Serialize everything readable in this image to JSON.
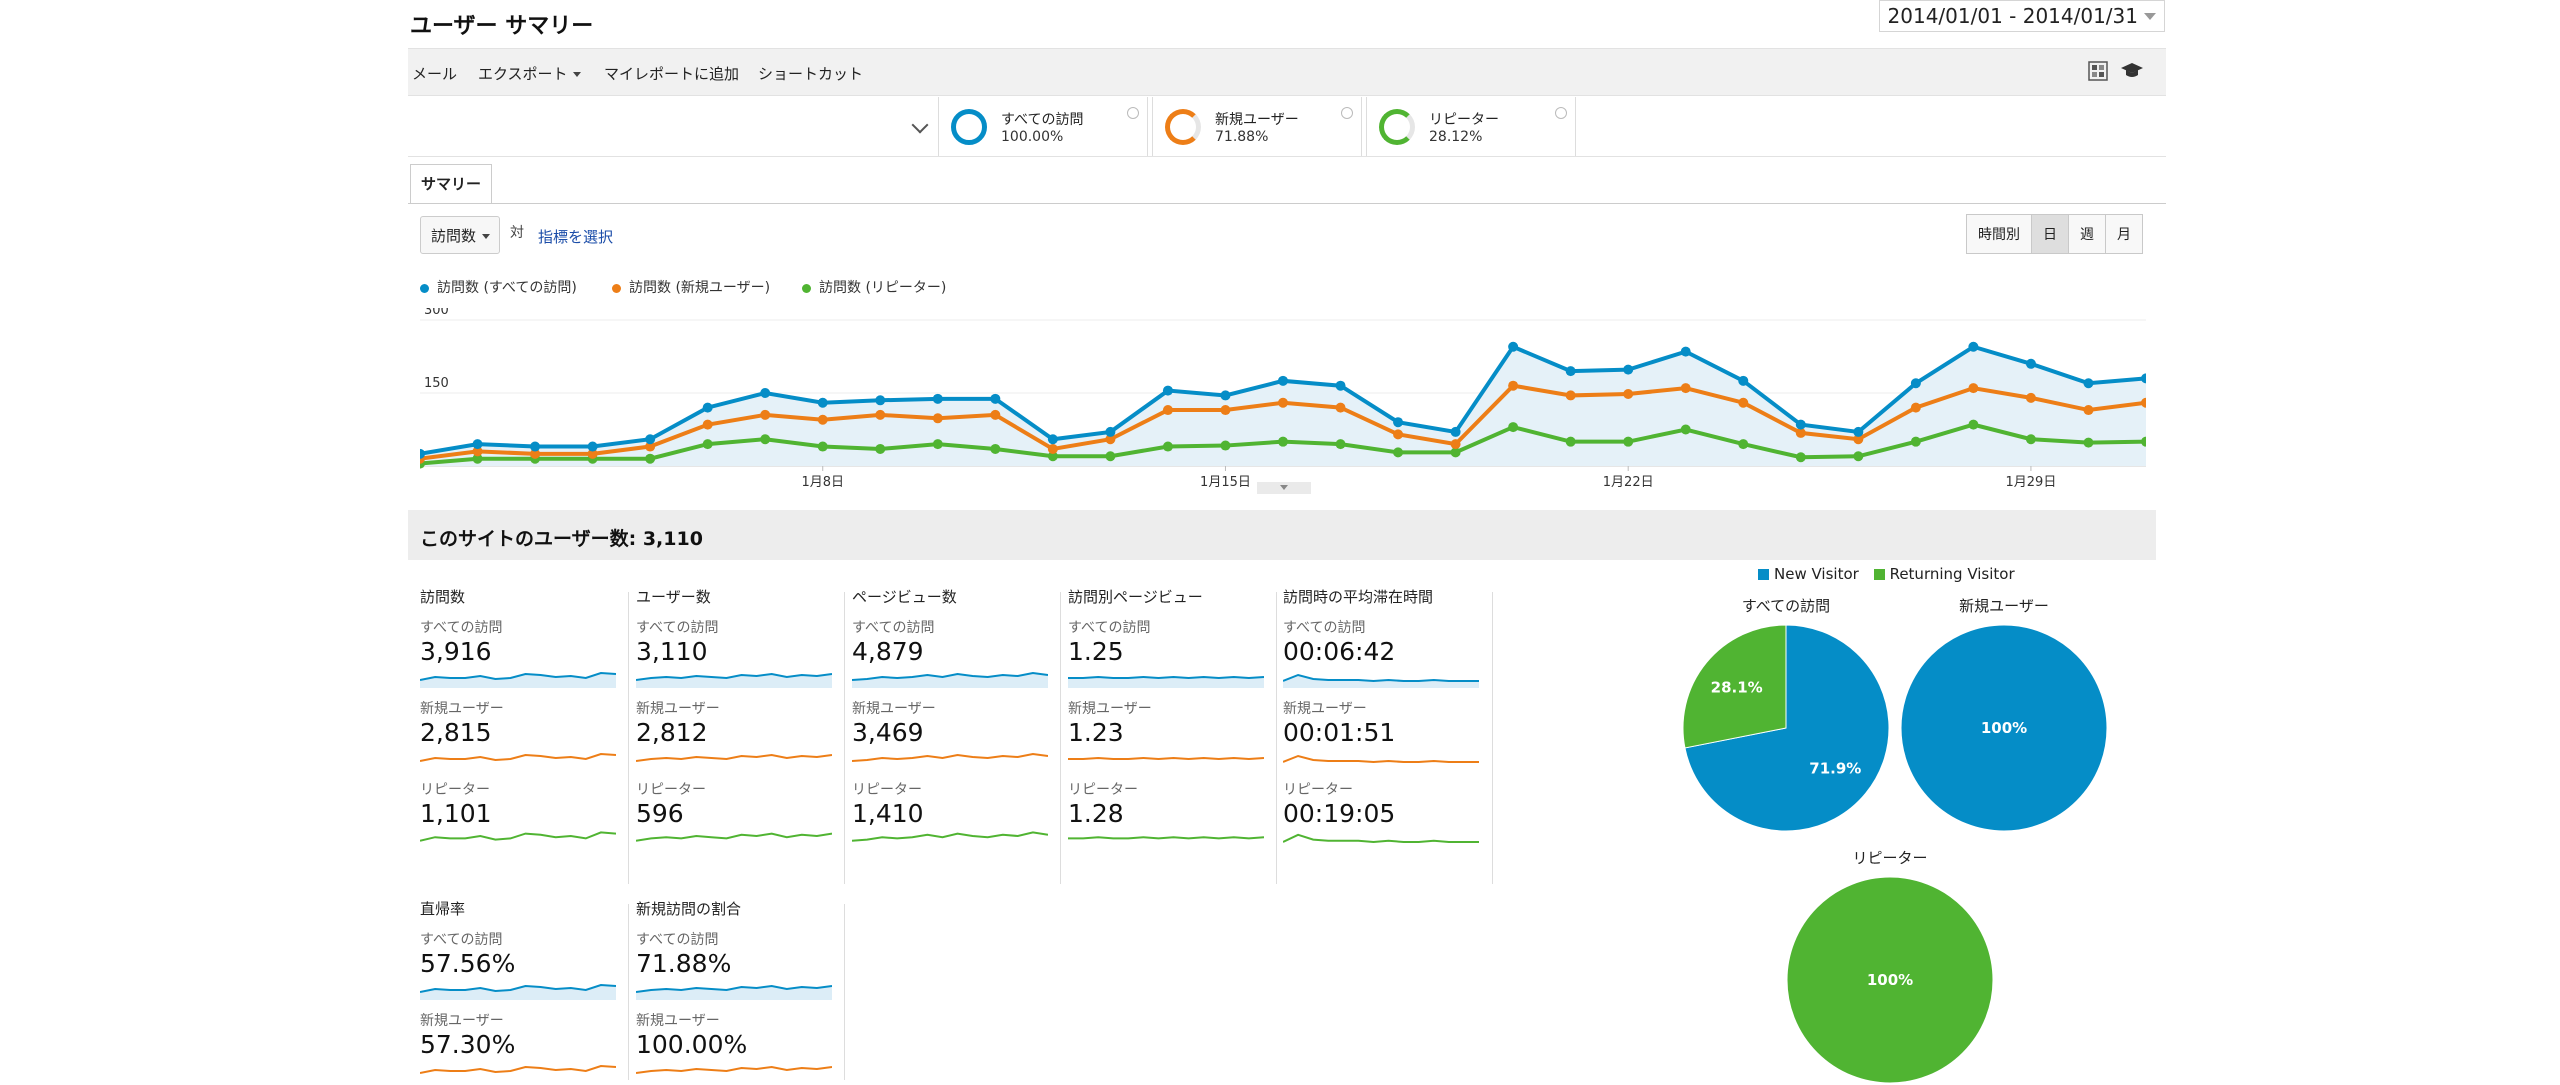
{
  "header": {
    "title": "ユーザー サマリー",
    "date_range": "2014/01/01 - 2014/01/31"
  },
  "toolbar": {
    "mail": "メール",
    "export": "エクスポート",
    "add_to_dashboard": "マイレポートに追加",
    "shortcut": "ショートカット"
  },
  "segments": [
    {
      "name": "すべての訪問",
      "pct": "100.00%",
      "color": "#058dc7"
    },
    {
      "name": "新規ユーザー",
      "pct": "71.88%",
      "color": "#ed7e17"
    },
    {
      "name": "リピーター",
      "pct": "28.12%",
      "color": "#50b432"
    }
  ],
  "tabs": {
    "summary": "サマリー"
  },
  "controls": {
    "metric": "訪問数",
    "vs": "対",
    "pick_metric": "指標を選択",
    "granularity": [
      "時間別",
      "日",
      "週",
      "月"
    ],
    "active_granularity": "日"
  },
  "chart_data": {
    "type": "line",
    "x": [
      "1月1日",
      "1月2日",
      "1月3日",
      "1月4日",
      "1月5日",
      "1月6日",
      "1月7日",
      "1月8日",
      "1月9日",
      "1月10日",
      "1月11日",
      "1月12日",
      "1月13日",
      "1月14日",
      "1月15日",
      "1月16日",
      "1月17日",
      "1月18日",
      "1月19日",
      "1月20日",
      "1月21日",
      "1月22日",
      "1月23日",
      "1月24日",
      "1月25日",
      "1月26日",
      "1月27日",
      "1月28日",
      "1月29日",
      "1月30日",
      "1月31日"
    ],
    "x_tick_labels": [
      "1月8日",
      "1月15日",
      "1月22日",
      "1月29日"
    ],
    "y_tick_labels": [
      "300",
      "150"
    ],
    "ylim": [
      0,
      300
    ],
    "series": [
      {
        "name": "訪問数 (すべての訪問)",
        "color": "#058dc7",
        "values": [
          25,
          45,
          40,
          40,
          55,
          120,
          150,
          130,
          135,
          138,
          138,
          55,
          70,
          155,
          145,
          175,
          165,
          90,
          70,
          245,
          195,
          198,
          235,
          175,
          85,
          70,
          170,
          245,
          210,
          170,
          180
        ]
      },
      {
        "name": "訪問数 (新規ユーザー)",
        "color": "#ed7e17",
        "values": [
          15,
          30,
          25,
          25,
          40,
          85,
          105,
          95,
          105,
          98,
          105,
          35,
          55,
          115,
          115,
          130,
          120,
          65,
          45,
          165,
          145,
          148,
          160,
          130,
          68,
          55,
          120,
          160,
          140,
          115,
          130
        ]
      },
      {
        "name": "訪問数 (リピーター)",
        "color": "#50b432",
        "values": [
          5,
          15,
          15,
          15,
          15,
          45,
          55,
          40,
          35,
          45,
          35,
          20,
          20,
          40,
          42,
          50,
          45,
          28,
          28,
          80,
          50,
          50,
          75,
          45,
          18,
          20,
          50,
          85,
          55,
          48,
          50
        ]
      }
    ]
  },
  "users_section": {
    "label": "このサイトのユーザー数: 3,110"
  },
  "metrics": [
    {
      "title": "訪問数",
      "rows": [
        {
          "segment": "すべての訪問",
          "value": "3,916"
        },
        {
          "segment": "新規ユーザー",
          "value": "2,815"
        },
        {
          "segment": "リピーター",
          "value": "1,101"
        }
      ]
    },
    {
      "title": "ユーザー数",
      "rows": [
        {
          "segment": "すべての訪問",
          "value": "3,110"
        },
        {
          "segment": "新規ユーザー",
          "value": "2,812"
        },
        {
          "segment": "リピーター",
          "value": "596"
        }
      ]
    },
    {
      "title": "ページビュー数",
      "rows": [
        {
          "segment": "すべての訪問",
          "value": "4,879"
        },
        {
          "segment": "新規ユーザー",
          "value": "3,469"
        },
        {
          "segment": "リピーター",
          "value": "1,410"
        }
      ]
    },
    {
      "title": "訪問別ページビュー",
      "rows": [
        {
          "segment": "すべての訪問",
          "value": "1.25"
        },
        {
          "segment": "新規ユーザー",
          "value": "1.23"
        },
        {
          "segment": "リピーター",
          "value": "1.28"
        }
      ]
    },
    {
      "title": "訪問時の平均滞在時間",
      "rows": [
        {
          "segment": "すべての訪問",
          "value": "00:06:42"
        },
        {
          "segment": "新規ユーザー",
          "value": "00:01:51"
        },
        {
          "segment": "リピーター",
          "value": "00:19:05"
        }
      ]
    },
    {
      "title": "直帰率",
      "rows": [
        {
          "segment": "すべての訪問",
          "value": "57.56%"
        },
        {
          "segment": "新規ユーザー",
          "value": "57.30%"
        }
      ]
    },
    {
      "title": "新規訪問の割合",
      "rows": [
        {
          "segment": "すべての訪問",
          "value": "71.88%"
        },
        {
          "segment": "新規ユーザー",
          "value": "100.00%"
        }
      ]
    }
  ],
  "pies": {
    "legend": [
      {
        "label": "New Visitor",
        "color": "#058dc7"
      },
      {
        "label": "Returning Visitor",
        "color": "#50b432"
      }
    ],
    "charts": [
      {
        "title": "すべての訪問",
        "slices": [
          {
            "value": 71.9,
            "label": "71.9%",
            "color": "#058dc7"
          },
          {
            "value": 28.1,
            "label": "28.1%",
            "color": "#50b432"
          }
        ]
      },
      {
        "title": "新規ユーザー",
        "slices": [
          {
            "value": 100,
            "label": "100%",
            "color": "#058dc7"
          }
        ]
      },
      {
        "title": "リピーター",
        "slices": [
          {
            "value": 100,
            "label": "100%",
            "color": "#50b432"
          }
        ]
      }
    ]
  }
}
